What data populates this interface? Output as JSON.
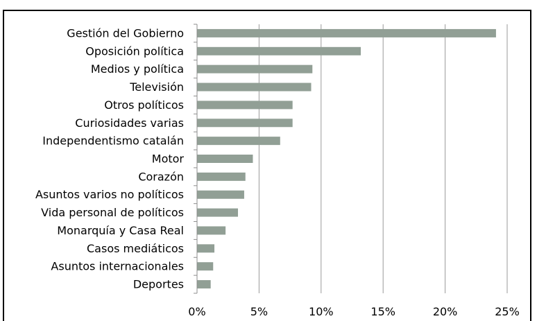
{
  "chart_data": {
    "type": "bar",
    "orientation": "horizontal",
    "title": "",
    "xlabel": "",
    "ylabel": "",
    "categories": [
      "Gestión del Gobierno",
      "Oposición política",
      "Medios y política",
      "Televisión",
      "Otros políticos",
      "Curiosidades varias",
      "Independentismo catalán",
      "Motor",
      "Corazón",
      "Asuntos varios no políticos",
      "Vida personal de políticos",
      "Monarquía y Casa Real",
      "Casos mediáticos",
      "Asuntos internacionales",
      "Deportes"
    ],
    "values": [
      24.1,
      13.2,
      9.3,
      9.2,
      7.7,
      7.7,
      6.7,
      4.5,
      3.9,
      3.8,
      3.3,
      2.3,
      1.4,
      1.3,
      1.1
    ],
    "unit": "%",
    "xlim": [
      0,
      25
    ],
    "xticks": [
      0,
      5,
      10,
      15,
      20,
      25
    ],
    "xtick_labels": [
      "0%",
      "5%",
      "10%",
      "15%",
      "20%",
      "25%"
    ],
    "grid": "vertical",
    "legend": "none",
    "colors": {
      "bar": "#919f95",
      "grid": "#9a9a9a",
      "axis": "#8c8c8c",
      "border": "#000000",
      "text": "#000000"
    }
  }
}
